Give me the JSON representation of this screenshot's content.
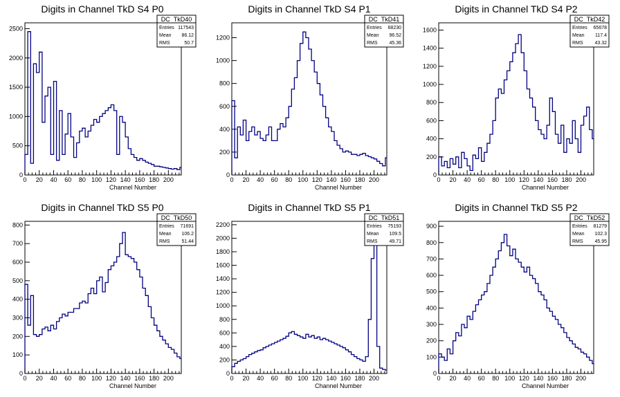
{
  "colors": {
    "line": "#000080",
    "axis": "#000000",
    "frame": "#000000",
    "background": "#ffffff"
  },
  "chart_data": [
    {
      "type": "histogram",
      "title": "Digits in Channel TkD S4 P0",
      "xlabel": "Channel Number",
      "stats": {
        "name": "DC_TkD40",
        "entries_label": "Entries",
        "entries": "117543",
        "mean_label": "Mean",
        "mean": "86.12",
        "rms_label": "RMS",
        "rms": "50.7"
      },
      "xlim": [
        0,
        218
      ],
      "ylim": [
        0,
        2600
      ],
      "xticks": [
        0,
        20,
        40,
        60,
        80,
        100,
        120,
        140,
        160,
        180,
        200
      ],
      "yticks": [
        0,
        500,
        1000,
        1500,
        2000,
        2500
      ],
      "x": [
        0,
        4,
        8,
        12,
        16,
        20,
        24,
        28,
        32,
        36,
        40,
        44,
        48,
        52,
        56,
        60,
        64,
        68,
        72,
        76,
        80,
        84,
        88,
        92,
        96,
        100,
        104,
        108,
        112,
        116,
        120,
        124,
        128,
        132,
        136,
        140,
        144,
        148,
        152,
        156,
        160,
        164,
        168,
        172,
        176,
        180,
        184,
        188,
        192,
        196,
        200,
        204,
        208,
        212,
        216
      ],
      "values": [
        350,
        2450,
        200,
        1900,
        1750,
        2100,
        900,
        1350,
        1500,
        350,
        1600,
        250,
        1100,
        350,
        700,
        1050,
        650,
        300,
        550,
        750,
        800,
        650,
        750,
        850,
        950,
        900,
        1000,
        1050,
        1100,
        1150,
        1200,
        1100,
        350,
        1000,
        900,
        650,
        450,
        350,
        300,
        250,
        280,
        250,
        220,
        200,
        180,
        150,
        150,
        140,
        130,
        120,
        110,
        100,
        110,
        90,
        130
      ]
    },
    {
      "type": "histogram",
      "title": "Digits in Channel TkD S4 P1",
      "xlabel": "Channel Number",
      "stats": {
        "name": "DC_TkD41",
        "entries_label": "Entries",
        "entries": "68230",
        "mean_label": "Mean",
        "mean": "96.52",
        "rms_label": "RMS",
        "rms": "45.36"
      },
      "xlim": [
        0,
        218
      ],
      "ylim": [
        0,
        1330
      ],
      "xticks": [
        0,
        20,
        40,
        60,
        80,
        100,
        120,
        140,
        160,
        180,
        200
      ],
      "yticks": [
        0,
        200,
        400,
        600,
        800,
        1000,
        1200
      ],
      "x": [
        0,
        4,
        8,
        12,
        16,
        20,
        24,
        28,
        32,
        36,
        40,
        44,
        48,
        52,
        56,
        60,
        64,
        68,
        72,
        76,
        80,
        84,
        88,
        92,
        96,
        100,
        104,
        108,
        112,
        116,
        120,
        124,
        128,
        132,
        136,
        140,
        144,
        148,
        152,
        156,
        160,
        164,
        168,
        172,
        176,
        180,
        184,
        188,
        192,
        196,
        200,
        204,
        208,
        212,
        216
      ],
      "values": [
        650,
        150,
        420,
        350,
        480,
        300,
        380,
        420,
        350,
        380,
        320,
        300,
        350,
        420,
        300,
        300,
        400,
        450,
        420,
        500,
        600,
        750,
        850,
        1000,
        1150,
        1250,
        1200,
        1100,
        1000,
        900,
        800,
        700,
        600,
        500,
        420,
        380,
        300,
        260,
        230,
        200,
        210,
        200,
        180,
        180,
        170,
        180,
        190,
        170,
        160,
        150,
        140,
        120,
        100,
        80,
        150
      ]
    },
    {
      "type": "histogram",
      "title": "Digits in Channel TkD S4 P2",
      "xlabel": "Channel Number",
      "stats": {
        "name": "DC_TkD42",
        "entries_label": "Entries",
        "entries": "65678",
        "mean_label": "Mean",
        "mean": "117.4",
        "rms_label": "RMS",
        "rms": "43.32"
      },
      "xlim": [
        0,
        218
      ],
      "ylim": [
        0,
        1680
      ],
      "xticks": [
        0,
        20,
        40,
        60,
        80,
        100,
        120,
        140,
        160,
        180,
        200
      ],
      "yticks": [
        0,
        200,
        400,
        600,
        800,
        1000,
        1200,
        1400,
        1600
      ],
      "x": [
        0,
        4,
        8,
        12,
        16,
        20,
        24,
        28,
        32,
        36,
        40,
        44,
        48,
        52,
        56,
        60,
        64,
        68,
        72,
        76,
        80,
        84,
        88,
        92,
        96,
        100,
        104,
        108,
        112,
        116,
        120,
        124,
        128,
        132,
        136,
        140,
        144,
        148,
        152,
        156,
        160,
        164,
        168,
        172,
        176,
        180,
        184,
        188,
        192,
        196,
        200,
        204,
        208,
        212,
        216
      ],
      "values": [
        200,
        100,
        150,
        80,
        180,
        120,
        200,
        80,
        250,
        180,
        100,
        50,
        220,
        180,
        300,
        150,
        250,
        350,
        450,
        600,
        850,
        950,
        900,
        1050,
        1150,
        1250,
        1350,
        1450,
        1550,
        1350,
        1150,
        950,
        850,
        750,
        600,
        500,
        450,
        400,
        550,
        850,
        700,
        450,
        350,
        550,
        250,
        400,
        350,
        600,
        400,
        250,
        550,
        650,
        750,
        500,
        400
      ]
    },
    {
      "type": "histogram",
      "title": "Digits in Channel TkD S5 P0",
      "xlabel": "Channel Number",
      "stats": {
        "name": "DC_TkD50",
        "entries_label": "Entries",
        "entries": "71691",
        "mean_label": "Mean",
        "mean": "106.2",
        "rms_label": "RMS",
        "rms": "51.44"
      },
      "xlim": [
        0,
        218
      ],
      "ylim": [
        0,
        820
      ],
      "xticks": [
        0,
        20,
        40,
        60,
        80,
        100,
        120,
        140,
        160,
        180,
        200
      ],
      "yticks": [
        0,
        100,
        200,
        300,
        400,
        500,
        600,
        700,
        800
      ],
      "x": [
        0,
        4,
        8,
        12,
        16,
        20,
        24,
        28,
        32,
        36,
        40,
        44,
        48,
        52,
        56,
        60,
        64,
        68,
        72,
        76,
        80,
        84,
        88,
        92,
        96,
        100,
        104,
        108,
        112,
        116,
        120,
        124,
        128,
        132,
        136,
        140,
        144,
        148,
        152,
        156,
        160,
        164,
        168,
        172,
        176,
        180,
        184,
        188,
        192,
        196,
        200,
        204,
        208,
        212,
        216
      ],
      "values": [
        480,
        260,
        420,
        210,
        200,
        210,
        240,
        250,
        230,
        260,
        240,
        280,
        300,
        320,
        310,
        330,
        330,
        350,
        350,
        380,
        390,
        380,
        430,
        460,
        430,
        500,
        520,
        440,
        490,
        560,
        580,
        600,
        630,
        700,
        760,
        640,
        630,
        620,
        600,
        560,
        520,
        460,
        420,
        360,
        300,
        260,
        230,
        200,
        180,
        160,
        140,
        130,
        110,
        90,
        80
      ]
    },
    {
      "type": "histogram",
      "title": "Digits in Channel TkD S5 P1",
      "xlabel": "Channel Number",
      "stats": {
        "name": "DC_TkD51",
        "entries_label": "Entries",
        "entries": "75193",
        "mean_label": "Mean",
        "mean": "109.5",
        "rms_label": "RMS",
        "rms": "49.71"
      },
      "xlim": [
        0,
        218
      ],
      "ylim": [
        0,
        2250
      ],
      "xticks": [
        0,
        20,
        40,
        60,
        80,
        100,
        120,
        140,
        160,
        180,
        200
      ],
      "yticks": [
        0,
        200,
        400,
        600,
        800,
        1000,
        1200,
        1400,
        1600,
        1800,
        2000,
        2200
      ],
      "x": [
        0,
        4,
        8,
        12,
        16,
        20,
        24,
        28,
        32,
        36,
        40,
        44,
        48,
        52,
        56,
        60,
        64,
        68,
        72,
        76,
        80,
        84,
        88,
        92,
        96,
        100,
        104,
        108,
        112,
        116,
        120,
        124,
        128,
        132,
        136,
        140,
        144,
        148,
        152,
        156,
        160,
        164,
        168,
        172,
        176,
        180,
        184,
        188,
        192,
        196,
        200,
        204,
        208,
        212,
        216
      ],
      "values": [
        100,
        150,
        180,
        200,
        220,
        250,
        280,
        300,
        320,
        340,
        350,
        380,
        400,
        420,
        440,
        460,
        480,
        500,
        520,
        550,
        600,
        620,
        580,
        560,
        540,
        520,
        580,
        540,
        560,
        520,
        540,
        500,
        520,
        500,
        480,
        460,
        440,
        420,
        400,
        380,
        350,
        320,
        280,
        250,
        220,
        200,
        180,
        250,
        800,
        1700,
        1950,
        400,
        80,
        60,
        50
      ]
    },
    {
      "type": "histogram",
      "title": "Digits in Channel TkD S5 P2",
      "xlabel": "Channel Number",
      "stats": {
        "name": "DC_TkD52",
        "entries_label": "Entries",
        "entries": "81279",
        "mean_label": "Mean",
        "mean": "102.3",
        "rms_label": "RMS",
        "rms": "45.95"
      },
      "xlim": [
        0,
        218
      ],
      "ylim": [
        0,
        930
      ],
      "xticks": [
        0,
        20,
        40,
        60,
        80,
        100,
        120,
        140,
        160,
        180,
        200
      ],
      "yticks": [
        0,
        100,
        200,
        300,
        400,
        500,
        600,
        700,
        800,
        900
      ],
      "x": [
        0,
        4,
        8,
        12,
        16,
        20,
        24,
        28,
        32,
        36,
        40,
        44,
        48,
        52,
        56,
        60,
        64,
        68,
        72,
        76,
        80,
        84,
        88,
        92,
        96,
        100,
        104,
        108,
        112,
        116,
        120,
        124,
        128,
        132,
        136,
        140,
        144,
        148,
        152,
        156,
        160,
        164,
        168,
        172,
        176,
        180,
        184,
        188,
        192,
        196,
        200,
        204,
        208,
        212,
        216
      ],
      "values": [
        120,
        100,
        80,
        150,
        120,
        200,
        250,
        230,
        300,
        280,
        350,
        330,
        380,
        420,
        450,
        480,
        500,
        550,
        600,
        650,
        700,
        750,
        800,
        850,
        780,
        720,
        760,
        700,
        680,
        650,
        620,
        650,
        600,
        580,
        550,
        500,
        480,
        450,
        400,
        380,
        350,
        330,
        300,
        280,
        250,
        220,
        200,
        180,
        160,
        150,
        130,
        120,
        100,
        80,
        60
      ]
    }
  ]
}
